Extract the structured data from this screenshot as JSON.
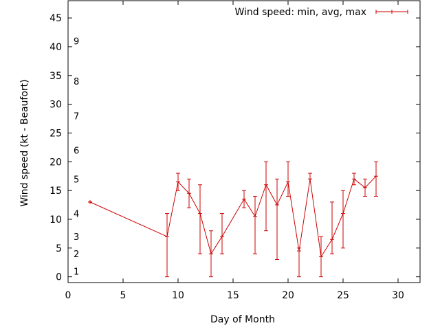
{
  "chart_data": {
    "type": "line",
    "title": "",
    "xlabel": "Day of Month",
    "ylabel": "Wind speed (kt - Beaufort)",
    "xlim": [
      0,
      32
    ],
    "ylim": [
      -1,
      48
    ],
    "xticks": [
      0,
      5,
      10,
      15,
      20,
      25,
      30
    ],
    "yticks": [
      0,
      5,
      10,
      15,
      20,
      25,
      30,
      35,
      40,
      45
    ],
    "grid": false,
    "legend_position": "top-right",
    "beaufort_labels": [
      {
        "label": "1",
        "y": 1
      },
      {
        "label": "2",
        "y": 4
      },
      {
        "label": "3",
        "y": 7
      },
      {
        "label": "4",
        "y": 11
      },
      {
        "label": "5",
        "y": 17
      },
      {
        "label": "6",
        "y": 22
      },
      {
        "label": "7",
        "y": 28
      },
      {
        "label": "8",
        "y": 34
      },
      {
        "label": "9",
        "y": 41
      }
    ],
    "series": [
      {
        "name": "Wind speed: min, avg, max",
        "color": "#cc0000",
        "points": [
          {
            "x": 2,
            "y": 13,
            "min": 13,
            "max": 13
          },
          {
            "x": 9,
            "y": 7,
            "min": 0,
            "max": 11
          },
          {
            "x": 10,
            "y": 16.5,
            "min": 15,
            "max": 18
          },
          {
            "x": 11,
            "y": 14.5,
            "min": 12,
            "max": 17
          },
          {
            "x": 12,
            "y": 11,
            "min": 4,
            "max": 16
          },
          {
            "x": 13,
            "y": 4,
            "min": 0,
            "max": 8
          },
          {
            "x": 14,
            "y": 7,
            "min": 4,
            "max": 11
          },
          {
            "x": 16,
            "y": 13.5,
            "min": 12,
            "max": 15
          },
          {
            "x": 17,
            "y": 10.5,
            "min": 4,
            "max": 14
          },
          {
            "x": 18,
            "y": 16,
            "min": 8,
            "max": 20
          },
          {
            "x": 19,
            "y": 12.5,
            "min": 3,
            "max": 17
          },
          {
            "x": 20,
            "y": 16.5,
            "min": 14,
            "max": 20
          },
          {
            "x": 21,
            "y": 4.5,
            "min": 0,
            "max": 5
          },
          {
            "x": 22,
            "y": 17,
            "min": 17,
            "max": 18
          },
          {
            "x": 23,
            "y": 3.5,
            "min": 0,
            "max": 7
          },
          {
            "x": 24,
            "y": 6.5,
            "min": 4,
            "max": 13
          },
          {
            "x": 25,
            "y": 11,
            "min": 5,
            "max": 15
          },
          {
            "x": 26,
            "y": 17,
            "min": 16,
            "max": 18
          },
          {
            "x": 27,
            "y": 15.5,
            "min": 14,
            "max": 17
          },
          {
            "x": 28,
            "y": 17.5,
            "min": 14,
            "max": 20
          }
        ]
      }
    ]
  }
}
